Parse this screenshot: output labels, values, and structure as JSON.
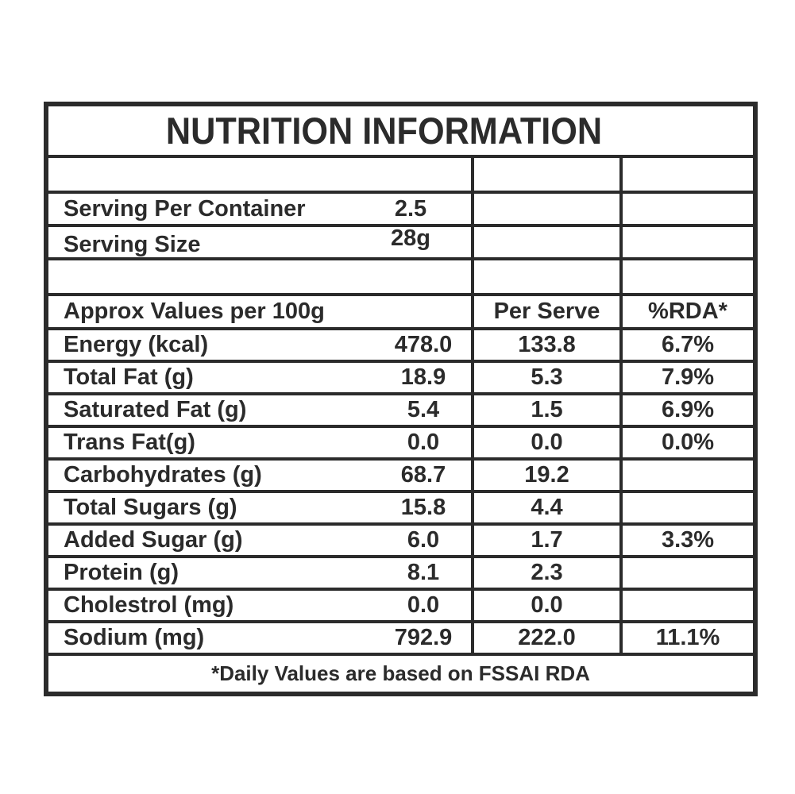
{
  "label": {
    "title": "NUTRITION INFORMATION",
    "serving_info": [
      {
        "label": "Serving Per Container",
        "value": "2.5"
      },
      {
        "label": "Serving Size",
        "value": "28g"
      }
    ],
    "columns": {
      "col1": "Approx Values per 100g",
      "col2": "Per Serve",
      "col3": "%RDA*"
    },
    "rows": [
      {
        "name": "Energy (kcal)",
        "per100g": "478.0",
        "per_serve": "133.8",
        "rda": "6.7%"
      },
      {
        "name": "Total Fat (g)",
        "per100g": "18.9",
        "per_serve": "5.3",
        "rda": "7.9%"
      },
      {
        "name": "Saturated Fat (g)",
        "per100g": "5.4",
        "per_serve": "1.5",
        "rda": "6.9%"
      },
      {
        "name": "Trans Fat(g)",
        "per100g": "0.0",
        "per_serve": "0.0",
        "rda": "0.0%"
      },
      {
        "name": "Carbohydrates (g)",
        "per100g": "68.7",
        "per_serve": "19.2",
        "rda": ""
      },
      {
        "name": "Total Sugars (g)",
        "per100g": "15.8",
        "per_serve": "4.4",
        "rda": ""
      },
      {
        "name": "Added Sugar (g)",
        "per100g": "6.0",
        "per_serve": "1.7",
        "rda": "3.3%"
      },
      {
        "name": "Protein (g)",
        "per100g": "8.1",
        "per_serve": "2.3",
        "rda": ""
      },
      {
        "name": "Cholestrol (mg)",
        "per100g": "0.0",
        "per_serve": "0.0",
        "rda": ""
      },
      {
        "name": "Sodium (mg)",
        "per100g": "792.9",
        "per_serve": "222.0",
        "rda": "11.1%"
      }
    ],
    "footnote": "*Daily Values are based on FSSAI RDA",
    "colors": {
      "ink": "#2b2b2b",
      "background": "#ffffff"
    }
  }
}
